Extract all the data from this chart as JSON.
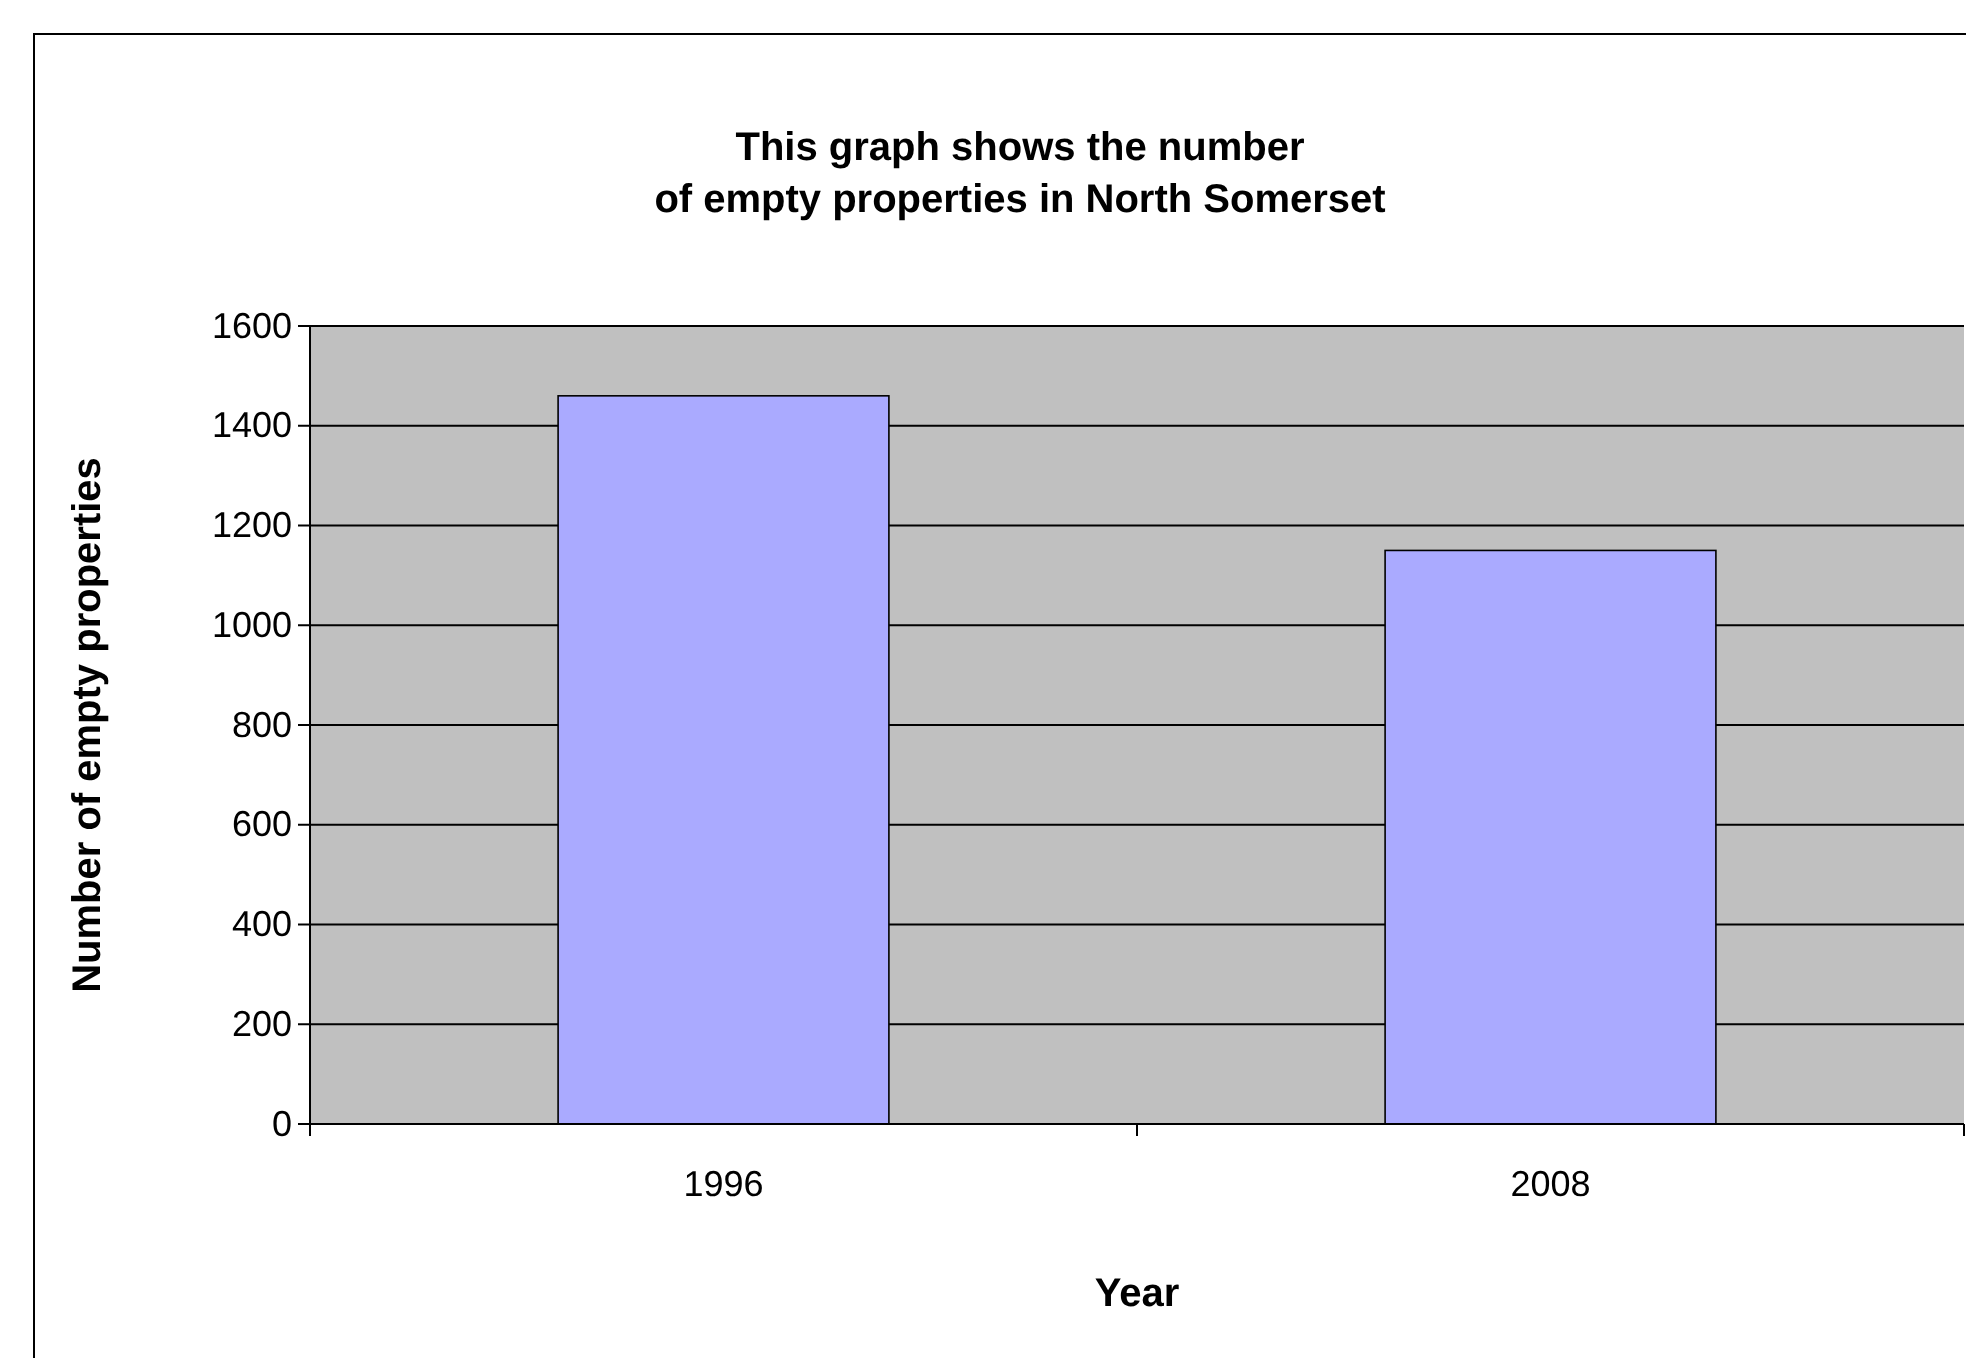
{
  "chart_data": {
    "type": "bar",
    "title": "This graph shows the number of empty properties in North Somerset",
    "xlabel": "Year",
    "ylabel": "Number of empty properties",
    "categories": [
      "1996",
      "2008"
    ],
    "values": [
      1460,
      1150
    ],
    "color": "#aaaaff",
    "ylim": [
      0,
      1600
    ],
    "yticks": [
      0,
      200,
      400,
      600,
      800,
      1000,
      1200,
      1400,
      1600
    ],
    "grid": "y"
  }
}
